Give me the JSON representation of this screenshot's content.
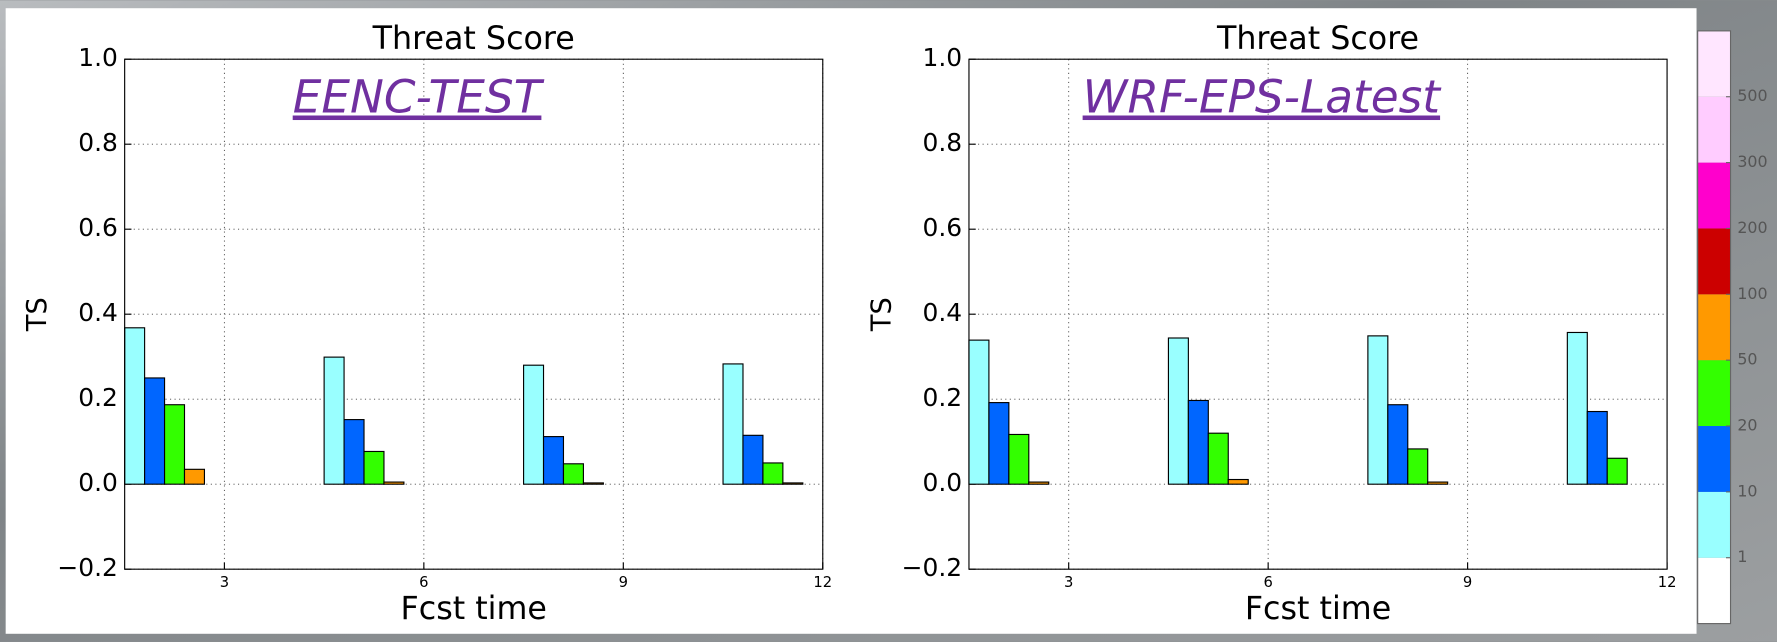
{
  "chart_data": [
    {
      "type": "bar",
      "title": "Threat Score",
      "subtitle": "EENC-TEST",
      "xlabel": "Fcst time",
      "ylabel": "TS",
      "x": [
        1.5,
        4.5,
        7.5,
        10.5
      ],
      "series": [
        {
          "color": "#99ffff",
          "values": [
            0.368,
            0.299,
            0.28,
            0.283
          ]
        },
        {
          "color": "#0066ff",
          "values": [
            0.25,
            0.152,
            0.112,
            0.115
          ]
        },
        {
          "color": "#33ff00",
          "values": [
            0.187,
            0.077,
            0.048,
            0.05
          ]
        },
        {
          "color": "#ff9900",
          "values": [
            0.035,
            0.005,
            0.003,
            0.003
          ]
        },
        {
          "color": "#cc0000",
          "values": [
            0,
            0,
            0,
            0
          ]
        },
        {
          "color": "#ff00cc",
          "values": [
            0,
            0,
            0,
            0
          ]
        },
        {
          "color": "#ffccff",
          "values": [
            0,
            0,
            0,
            0
          ]
        },
        {
          "color": "#ffe6ff",
          "values": [
            0,
            0,
            0,
            0
          ]
        }
      ],
      "xlim": [
        1.5,
        12
      ],
      "xticks": [
        3,
        6,
        9,
        12
      ],
      "ylim": [
        -0.2,
        1.0
      ],
      "yticks": [
        {
          "value": -0.2,
          "label": "−0.2"
        },
        {
          "value": 0,
          "label": "0.0"
        },
        {
          "value": 0.2,
          "label": "0.2"
        },
        {
          "value": 0.4,
          "label": "0.4"
        },
        {
          "value": 0.6,
          "label": "0.6"
        },
        {
          "value": 0.8,
          "label": "0.8"
        },
        {
          "value": 1,
          "label": "1.0"
        }
      ],
      "grid": true
    },
    {
      "type": "bar",
      "title": "Threat Score",
      "subtitle": "WRF-EPS-Latest",
      "xlabel": "Fcst time",
      "ylabel": "TS",
      "x": [
        1.5,
        4.5,
        7.5,
        10.5
      ],
      "series": [
        {
          "color": "#99ffff",
          "values": [
            0.339,
            0.344,
            0.349,
            0.357
          ]
        },
        {
          "color": "#0066ff",
          "values": [
            0.192,
            0.197,
            0.187,
            0.171
          ]
        },
        {
          "color": "#33ff00",
          "values": [
            0.117,
            0.12,
            0.083,
            0.061
          ]
        },
        {
          "color": "#ff9900",
          "values": [
            0.005,
            0.011,
            0.005,
            0
          ]
        },
        {
          "color": "#cc0000",
          "values": [
            0,
            0,
            0,
            0
          ]
        },
        {
          "color": "#ff00cc",
          "values": [
            0,
            0,
            0,
            0
          ]
        },
        {
          "color": "#ffccff",
          "values": [
            0,
            0,
            0,
            0
          ]
        },
        {
          "color": "#ffe6ff",
          "values": [
            0,
            0,
            0,
            0
          ]
        }
      ],
      "xlim": [
        1.5,
        12
      ],
      "xticks": [
        3,
        6,
        9,
        12
      ],
      "ylim": [
        -0.2,
        1.0
      ],
      "yticks": [
        {
          "value": -0.2,
          "label": "−0.2"
        },
        {
          "value": 0,
          "label": "0.0"
        },
        {
          "value": 0.2,
          "label": "0.2"
        },
        {
          "value": 0.4,
          "label": "0.4"
        },
        {
          "value": 0.6,
          "label": "0.6"
        },
        {
          "value": 0.8,
          "label": "0.8"
        },
        {
          "value": 1,
          "label": "1.0"
        }
      ],
      "grid": true
    }
  ],
  "colorbar": {
    "labels": [
      "1",
      "10",
      "20",
      "50",
      "100",
      "200",
      "300",
      "500"
    ],
    "colors": [
      "#ffffff",
      "#99ffff",
      "#0066ff",
      "#33ff00",
      "#ff9900",
      "#cc0000",
      "#ff00cc",
      "#ffccff",
      "#ffe6ff"
    ]
  }
}
